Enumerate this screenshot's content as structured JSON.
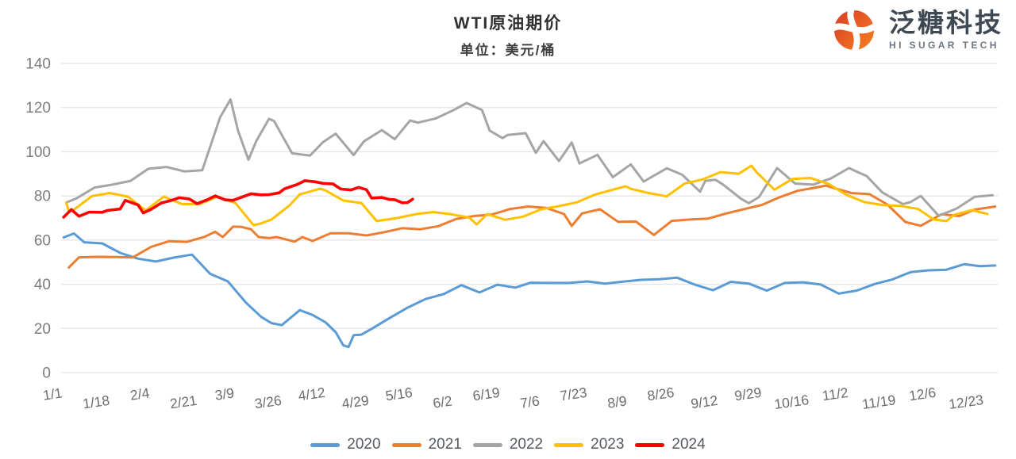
{
  "header": {
    "title": "WTI原油期价",
    "subtitle": "单位：美元/桶"
  },
  "logo": {
    "company_cn": "泛糖科技",
    "company_en": "HI SUGAR TECH",
    "brand_color_dark": "#D93A26",
    "brand_color_light": "#F58220"
  },
  "chart_data": {
    "type": "line",
    "title": "WTI原油期价",
    "unit_label": "单位：美元/桶",
    "xlabel": "",
    "ylabel": "",
    "ylim": [
      0,
      140
    ],
    "yticks": [
      0,
      20,
      40,
      60,
      80,
      100,
      120,
      140
    ],
    "grid": true,
    "grid_color": "#e4e4e4",
    "axis_label_color": "#7c7c7c",
    "x_label_color": "#6d6d6d",
    "legend_position": "bottom",
    "x_axis": {
      "tick_days": [
        1,
        18,
        35,
        52,
        68,
        85,
        102,
        119,
        136,
        153,
        170,
        187,
        204,
        221,
        238,
        255,
        272,
        289,
        306,
        323,
        340,
        357
      ],
      "tick_labels": [
        "1/1",
        "1/18",
        "2/4",
        "2/21",
        "3/9",
        "3/26",
        "4/12",
        "4/29",
        "5/16",
        "6/2",
        "6/19",
        "7/6",
        "7/23",
        "8/9",
        "8/26",
        "9/12",
        "9/29",
        "10/16",
        "11/2",
        "11/19",
        "12/6",
        "12/23"
      ]
    },
    "series": [
      {
        "name": "2020",
        "color": "#5B9BD5",
        "width": 3,
        "x": [
          2,
          6,
          10,
          17,
          24,
          31,
          38,
          45,
          52,
          59,
          66,
          73,
          79,
          83,
          87,
          94,
          99,
          104,
          108,
          111,
          113,
          115,
          118,
          122,
          129,
          136,
          143,
          150,
          157,
          164,
          171,
          178,
          184,
          192,
          199,
          206,
          213,
          220,
          227,
          234,
          241,
          248,
          255,
          262,
          269,
          276,
          283,
          290,
          297,
          304,
          311,
          318,
          325,
          332,
          339,
          346,
          353,
          359,
          365
        ],
        "y": [
          61.2,
          63.0,
          59.0,
          58.5,
          54.2,
          51.6,
          50.3,
          52.1,
          53.4,
          44.8,
          41.3,
          31.7,
          25.2,
          22.4,
          21.5,
          28.3,
          26.1,
          22.8,
          18.3,
          12.3,
          11.6,
          16.9,
          17.2,
          19.8,
          24.7,
          29.4,
          33.3,
          35.5,
          39.6,
          36.3,
          39.8,
          38.5,
          40.7,
          40.6,
          40.6,
          41.3,
          40.3,
          41.2,
          42.0,
          42.3,
          43.0,
          39.8,
          37.3,
          41.1,
          40.3,
          37.1,
          40.6,
          40.9,
          39.9,
          35.8,
          37.1,
          40.1,
          42.2,
          45.5,
          46.3,
          46.6,
          49.1,
          48.2,
          48.5
        ]
      },
      {
        "name": "2021",
        "color": "#ED7D31",
        "width": 3,
        "x": [
          4,
          8,
          15,
          22,
          29,
          36,
          43,
          50,
          57,
          61,
          64,
          68,
          71,
          75,
          78,
          82,
          85,
          92,
          95,
          99,
          106,
          113,
          120,
          127,
          134,
          141,
          148,
          155,
          162,
          169,
          176,
          183,
          190,
          197,
          200,
          204,
          211,
          218,
          225,
          232,
          239,
          246,
          253,
          260,
          267,
          274,
          281,
          288,
          295,
          299,
          302,
          309,
          316,
          323,
          330,
          336,
          344,
          351,
          357,
          365
        ],
        "y": [
          47.6,
          52.2,
          52.4,
          52.3,
          52.2,
          56.9,
          59.5,
          59.2,
          61.5,
          63.8,
          61.4,
          66.1,
          66.0,
          64.9,
          61.4,
          60.9,
          61.4,
          59.3,
          61.4,
          59.6,
          63.1,
          63.1,
          62.1,
          63.6,
          65.4,
          64.9,
          66.3,
          69.6,
          70.9,
          71.6,
          74.1,
          75.2,
          74.6,
          71.8,
          66.4,
          72.1,
          74.0,
          68.3,
          68.4,
          62.3,
          68.7,
          69.3,
          69.7,
          72.0,
          74.0,
          75.9,
          79.4,
          82.3,
          83.8,
          84.7,
          83.6,
          81.3,
          80.8,
          76.1,
          68.2,
          66.5,
          71.7,
          70.9,
          73.8,
          75.2
        ]
      },
      {
        "name": "2022",
        "color": "#A5A5A5",
        "width": 3,
        "x": [
          3,
          7,
          14,
          21,
          28,
          35,
          42,
          49,
          56,
          63,
          67,
          70,
          74,
          77,
          82,
          84,
          91,
          98,
          103,
          108,
          115,
          119,
          126,
          131,
          137,
          140,
          147,
          154,
          159,
          165,
          168,
          173,
          175,
          182,
          186,
          189,
          195,
          200,
          203,
          210,
          216,
          223,
          228,
          237,
          243,
          250,
          252,
          256,
          259,
          266,
          269,
          273,
          280,
          287,
          294,
          301,
          308,
          315,
          321,
          329,
          332,
          336,
          343,
          350,
          357,
          364
        ],
        "y": [
          77.0,
          78.9,
          83.8,
          85.1,
          86.8,
          92.3,
          93.1,
          91.1,
          91.6,
          115.7,
          123.7,
          109.3,
          96.4,
          104.7,
          114.9,
          113.9,
          99.3,
          98.3,
          104.3,
          108.2,
          98.5,
          104.7,
          109.8,
          105.7,
          114.2,
          113.2,
          115.1,
          118.9,
          122.1,
          118.9,
          109.6,
          106.2,
          107.6,
          108.4,
          99.5,
          104.8,
          95.8,
          104.2,
          94.7,
          98.6,
          88.5,
          94.3,
          86.5,
          92.5,
          89.6,
          81.9,
          86.8,
          87.3,
          85.1,
          78.7,
          76.7,
          79.5,
          92.6,
          85.6,
          85.1,
          87.9,
          92.6,
          88.9,
          81.6,
          76.3,
          77.2,
          80.0,
          71.0,
          74.3,
          79.6,
          80.3
        ]
      },
      {
        "name": "2023",
        "color": "#FFC000",
        "width": 3,
        "x": [
          3,
          4,
          6,
          13,
          20,
          27,
          34,
          41,
          48,
          55,
          62,
          69,
          76,
          79,
          83,
          90,
          94,
          102,
          104,
          111,
          118,
          124,
          132,
          139,
          146,
          153,
          160,
          163,
          167,
          174,
          181,
          188,
          195,
          202,
          209,
          216,
          221,
          223,
          230,
          237,
          244,
          251,
          258,
          265,
          270,
          272,
          279,
          286,
          293,
          300,
          307,
          314,
          321,
          328,
          335,
          341,
          346,
          349,
          356,
          362
        ],
        "y": [
          76.9,
          73.0,
          73.8,
          79.9,
          81.3,
          79.7,
          73.4,
          79.7,
          76.3,
          76.3,
          79.7,
          76.7,
          66.7,
          67.6,
          69.3,
          75.7,
          80.7,
          83.3,
          82.5,
          77.9,
          76.8,
          68.6,
          70.0,
          71.7,
          72.7,
          71.7,
          70.2,
          67.1,
          71.8,
          69.2,
          70.6,
          73.9,
          75.4,
          77.1,
          80.6,
          82.8,
          84.4,
          83.2,
          81.3,
          79.8,
          85.6,
          87.5,
          90.8,
          90.0,
          93.7,
          90.8,
          82.8,
          87.7,
          88.1,
          85.5,
          80.5,
          77.2,
          75.9,
          75.5,
          74.1,
          69.3,
          68.6,
          71.4,
          73.6,
          71.8
        ]
      },
      {
        "name": "2024",
        "color": "#FF0000",
        "width": 3.6,
        "x": [
          2,
          5,
          8,
          12,
          17,
          19,
          24,
          26,
          31,
          33,
          36,
          40,
          44,
          47,
          51,
          54,
          58,
          61,
          65,
          68,
          72,
          75,
          79,
          82,
          86,
          88,
          93,
          96,
          100,
          103,
          107,
          110,
          114,
          117,
          120,
          122,
          126,
          129,
          131,
          134,
          136,
          138
        ],
        "y": [
          70.4,
          73.8,
          70.8,
          72.7,
          72.6,
          73.4,
          74.1,
          78.0,
          75.9,
          72.3,
          73.9,
          76.8,
          78.0,
          79.2,
          78.6,
          76.5,
          78.3,
          80.0,
          78.2,
          78.0,
          79.7,
          81.0,
          80.5,
          80.6,
          81.4,
          83.2,
          85.2,
          86.9,
          86.4,
          85.7,
          85.4,
          83.1,
          82.7,
          83.9,
          82.8,
          79.0,
          79.3,
          78.4,
          78.3,
          76.9,
          77.0,
          78.5
        ]
      }
    ]
  }
}
